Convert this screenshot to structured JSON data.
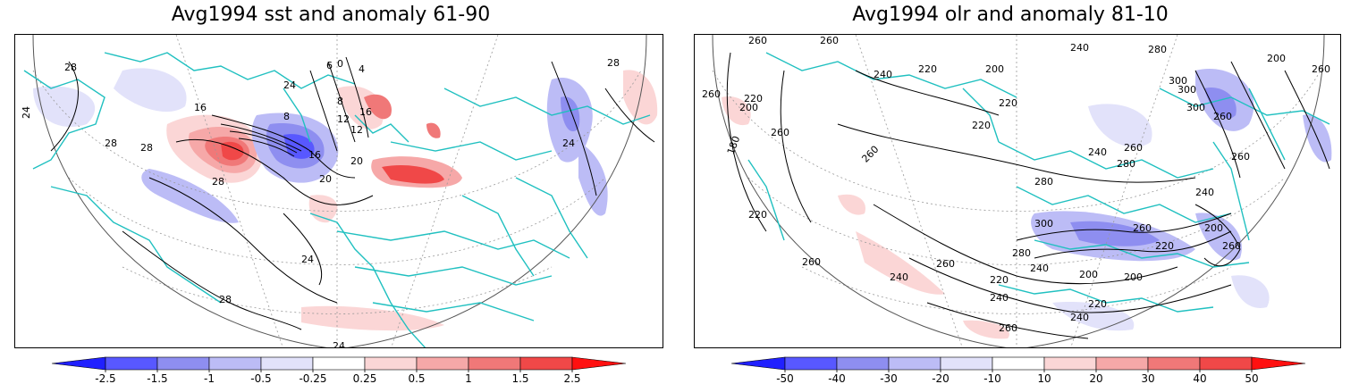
{
  "panels": [
    {
      "title": "Avg1994 sst and anomaly 61-90",
      "colorbar": {
        "colors": [
          "#2020ff",
          "#5858ff",
          "#8e8ef0",
          "#bcbcf6",
          "#e2e2fa",
          "#ffffff",
          "#fbd6d6",
          "#f6a8a8",
          "#f07878",
          "#f04848",
          "#ff1010"
        ],
        "ticks": [
          "-2.5",
          "-1.5",
          "-1",
          "-0.5",
          "-0.25",
          "0.25",
          "0.5",
          "1",
          "1.5",
          "2.5"
        ]
      },
      "contour_labels": [
        "28",
        "24",
        "28",
        "24",
        "28",
        "28",
        "28",
        "24",
        "24",
        "20",
        "16",
        "16",
        "12",
        "8",
        "6",
        "4",
        "0",
        "8",
        "12",
        "16",
        "20",
        "24",
        "28"
      ]
    },
    {
      "title": "Avg1994 olr and anomaly 81-10",
      "colorbar": {
        "colors": [
          "#2020ff",
          "#5858ff",
          "#8e8ef0",
          "#bcbcf6",
          "#e2e2fa",
          "#ffffff",
          "#fbd6d6",
          "#f6a8a8",
          "#f07878",
          "#f04848",
          "#ff1010"
        ],
        "ticks": [
          "-50",
          "-40",
          "-30",
          "-20",
          "-10",
          "10",
          "20",
          "30",
          "40",
          "50"
        ]
      },
      "contour_labels": [
        "260",
        "260",
        "240",
        "220",
        "240",
        "200",
        "260",
        "220",
        "200",
        "180",
        "260",
        "260",
        "220",
        "220",
        "280",
        "300",
        "300",
        "300",
        "260",
        "260",
        "240",
        "280",
        "200",
        "260",
        "260",
        "280",
        "300",
        "260",
        "280",
        "220",
        "240",
        "200",
        "240",
        "200",
        "260",
        "260",
        "240",
        "260",
        "220",
        "220",
        "240",
        "260",
        "200",
        "220",
        "240"
      ]
    }
  ]
}
